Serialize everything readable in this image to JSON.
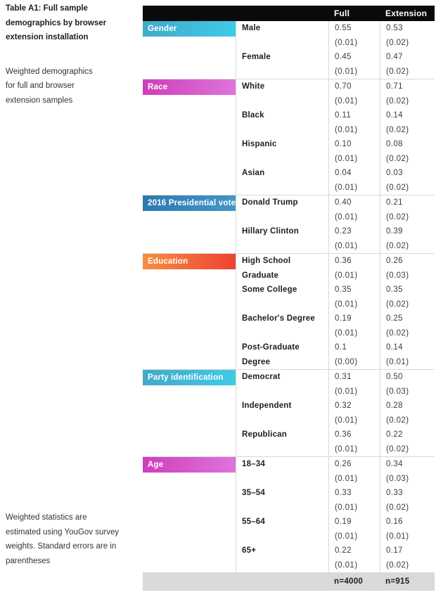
{
  "sidebar": {
    "title": "Table A1: Full sample\ndemographics by browser\nextension installation",
    "subtitle": "Weighted demographics\nfor full and browser\nextension samples",
    "note": "Weighted statistics are\nestimated using YouGov survey\nweights. Standard errors are in\nparentheses"
  },
  "table": {
    "header": {
      "col_full": "Full",
      "col_extension": "Extension",
      "bg": "#0a0a0c",
      "text_color": "#ffffff"
    },
    "footer": {
      "full_n": "n=4000",
      "extension_n": "n=915",
      "bg": "#d9d9d9"
    },
    "border_color": "#d8d8d8",
    "sections": [
      {
        "category": "Gender",
        "color_start": "#43A9C8",
        "color_end": "#3FCBE9",
        "rows": [
          {
            "label": "Male",
            "full": "0.55",
            "full_se": "(0.01)",
            "extension": "0.53",
            "extension_se": "(0.02)"
          },
          {
            "label": "Female",
            "full": "0.45",
            "full_se": "(0.01)",
            "extension": "0.47",
            "extension_se": "(0.02)"
          }
        ]
      },
      {
        "category": "Race",
        "color_start": "#CF3EBA",
        "color_end": "#DE74DA",
        "rows": [
          {
            "label": "White",
            "full": "0.70",
            "full_se": "(0.01)",
            "extension": "0.71",
            "extension_se": "(0.02)"
          },
          {
            "label": "Black",
            "full": "0.11",
            "full_se": "(0.01)",
            "extension": "0.14",
            "extension_se": "(0.02)"
          },
          {
            "label": "Hispanic",
            "full": "0.10",
            "full_se": "(0.01)",
            "extension": "0.08",
            "extension_se": "(0.02)"
          },
          {
            "label": "Asian",
            "full": "0.04",
            "full_se": "(0.01)",
            "extension": "0.03",
            "extension_se": "(0.02)"
          }
        ]
      },
      {
        "category": "2016 Presidential vote",
        "color_start": "#2C79B1",
        "color_end": "#4496C8",
        "rows": [
          {
            "label": "Donald Trump",
            "full": "0.40",
            "full_se": "(0.01)",
            "extension": "0.21",
            "extension_se": "(0.02)"
          },
          {
            "label": "Hillary Clinton",
            "full": "0.23",
            "full_se": "(0.01)",
            "extension": "0.39",
            "extension_se": "(0.02)"
          }
        ]
      },
      {
        "category": "Education",
        "color_start": "#F78F3E",
        "color_end": "#EE4134",
        "rows": [
          {
            "label": "High School Graduate",
            "full": "0.36",
            "full_se": "(0.01)",
            "extension": "0.26",
            "extension_se": "(0.03)"
          },
          {
            "label": "Some College",
            "full": "0.35",
            "full_se": "(0.01)",
            "extension": "0.35",
            "extension_se": "(0.02)"
          },
          {
            "label": "Bachelor's Degree",
            "full": "0.19",
            "full_se": "(0.01)",
            "extension": "0.25",
            "extension_se": "(0.02)"
          },
          {
            "label": "Post-Graduate Degree",
            "full": "0.1",
            "full_se": "(0.00)",
            "extension": "0.14",
            "extension_se": "(0.01)"
          }
        ]
      },
      {
        "category": "Party identification",
        "color_start": "#43A9C8",
        "color_end": "#3FCBE9",
        "rows": [
          {
            "label": "Democrat",
            "full": "0.31",
            "full_se": "(0.01)",
            "extension": "0.50",
            "extension_se": "(0.03)"
          },
          {
            "label": "Independent",
            "full": "0.32",
            "full_se": "(0.01)",
            "extension": "0.28",
            "extension_se": "(0.02)"
          },
          {
            "label": "Republican",
            "full": "0.36",
            "full_se": "(0.01)",
            "extension": "0.22",
            "extension_se": "(0.02)"
          }
        ]
      },
      {
        "category": "Age",
        "color_start": "#CF3EBA",
        "color_end": "#DE74DA",
        "rows": [
          {
            "label": "18–34",
            "full": "0.26",
            "full_se": "(0.01)",
            "extension": "0.34",
            "extension_se": "(0.03)"
          },
          {
            "label": "35–54",
            "full": "0.33",
            "full_se": "(0.01)",
            "extension": "0.33",
            "extension_se": "(0.02)"
          },
          {
            "label": "55–64",
            "full": "0.19",
            "full_se": "(0.01)",
            "extension": "0.16",
            "extension_se": "(0.01)"
          },
          {
            "label": "65+",
            "full": "0.22",
            "full_se": "(0.01)",
            "extension": "0.17",
            "extension_se": "(0.02)"
          }
        ]
      }
    ]
  }
}
